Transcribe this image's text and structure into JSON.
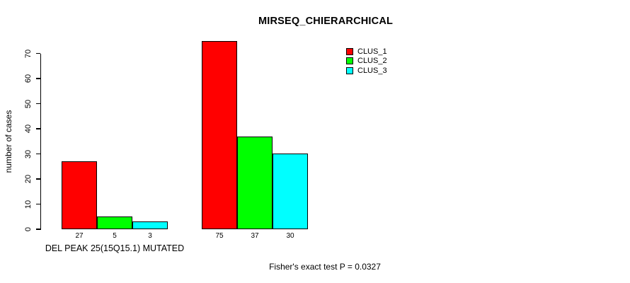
{
  "chart_data": {
    "type": "bar",
    "title": "MIRSEQ_CHIERARCHICAL",
    "ylabel": "number of cases",
    "xlabel": "",
    "ylim": [
      0,
      75
    ],
    "yticks": [
      0,
      10,
      20,
      30,
      40,
      50,
      60,
      70
    ],
    "grid": false,
    "legend_position": "top-right",
    "series": [
      {
        "name": "CLUS_1",
        "color": "#ff0000",
        "values": [
          27,
          75
        ]
      },
      {
        "name": "CLUS_2",
        "color": "#00ff00",
        "values": [
          5,
          37
        ]
      },
      {
        "name": "CLUS_3",
        "color": "#00ffff",
        "values": [
          3,
          30
        ]
      }
    ],
    "groups": [
      {
        "label": "DEL PEAK 25(15Q15.1) MUTATED",
        "values": [
          27,
          5,
          3
        ]
      },
      {
        "label": "",
        "values": [
          75,
          37,
          30
        ]
      }
    ],
    "bar_value_labels": [
      [
        "27",
        "5",
        "3"
      ],
      [
        "75",
        "37",
        "30"
      ]
    ],
    "annotation": "Fisher's exact test P = 0.0327"
  }
}
